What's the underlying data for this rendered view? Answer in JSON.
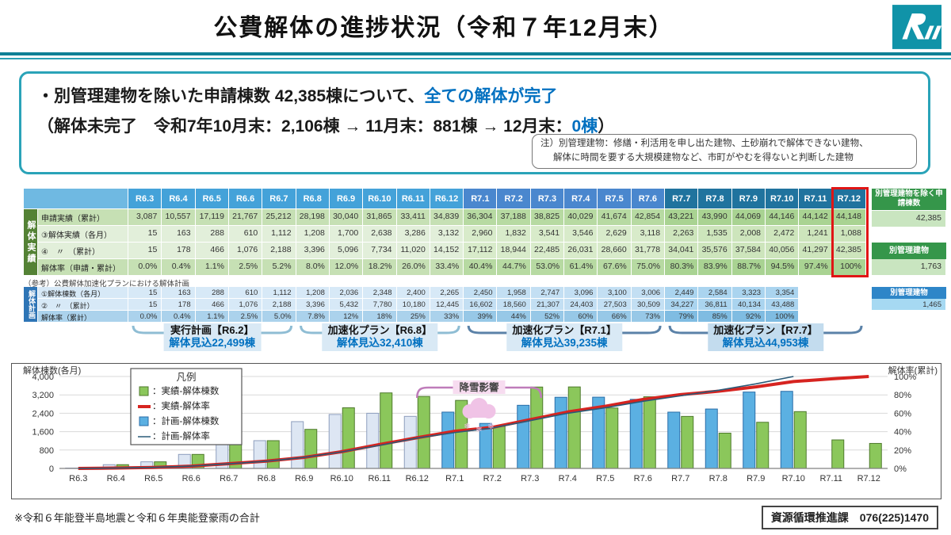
{
  "header": {
    "title": "公費解体の進捗状況（令和７年12月末）",
    "logo_name": "ishikawa-prefecture-logo"
  },
  "summary": {
    "line1_pre": "・別管理建物を除いた申請棟数 42,385棟について、",
    "line1_highlight": "全ての解体が完了",
    "line2_pre": "（解体未完了　令和7年10月末：2,106棟 → 11月末：881棟 → 12月末：",
    "line2_highlight": "0棟",
    "line2_close": "）",
    "note1": "注）別管理建物：修繕・利活用を申し出た建物、土砂崩れで解体できない建物、",
    "note2": "解体に時間を要する大規模建物など、市町がやむを得ないと判断した建物"
  },
  "table": {
    "columns": [
      "R6.3",
      "R6.4",
      "R6.5",
      "R6.6",
      "R6.7",
      "R6.8",
      "R6.9",
      "R6.10",
      "R6.11",
      "R6.12",
      "R7.1",
      "R7.2",
      "R7.3",
      "R7.4",
      "R7.5",
      "R7.6",
      "R7.7",
      "R7.8",
      "R7.9",
      "R7.10",
      "R7.11",
      "R7.12"
    ],
    "highlight_column": "R7.12",
    "actual_section": {
      "label": "解体実績",
      "rows": [
        {
          "label": "申請実績（累計）",
          "tone": "dark",
          "values": [
            "3,087",
            "10,557",
            "17,119",
            "21,767",
            "25,212",
            "28,198",
            "30,040",
            "31,865",
            "33,411",
            "34,839",
            "36,304",
            "37,188",
            "38,825",
            "40,029",
            "41,674",
            "42,854",
            "43,221",
            "43,990",
            "44,069",
            "44,146",
            "44,142",
            "44,148"
          ]
        },
        {
          "label": "③解体実績（各月）",
          "tone": "light",
          "values": [
            "15",
            "163",
            "288",
            "610",
            "1,112",
            "1,208",
            "1,700",
            "2,638",
            "3,286",
            "3,132",
            "2,960",
            "1,832",
            "3,541",
            "3,546",
            "2,629",
            "3,118",
            "2,263",
            "1,535",
            "2,008",
            "2,472",
            "1,241",
            "1,088"
          ]
        },
        {
          "label": "④　〃　（累計）",
          "tone": "light",
          "values": [
            "15",
            "178",
            "466",
            "1,076",
            "2,188",
            "3,396",
            "5,096",
            "7,734",
            "11,020",
            "14,152",
            "17,112",
            "18,944",
            "22,485",
            "26,031",
            "28,660",
            "31,778",
            "34,041",
            "35,576",
            "37,584",
            "40,056",
            "41,297",
            "42,385"
          ]
        },
        {
          "label": "解体率（申請・累計）",
          "tone": "dark",
          "values": [
            "0.0%",
            "0.4%",
            "1.1%",
            "2.5%",
            "5.2%",
            "8.0%",
            "12.0%",
            "18.2%",
            "26.0%",
            "33.4%",
            "40.4%",
            "44.7%",
            "53.0%",
            "61.4%",
            "67.6%",
            "75.0%",
            "80.3%",
            "83.9%",
            "88.7%",
            "94.5%",
            "97.4%",
            "100%"
          ]
        }
      ],
      "side": {
        "header1": "別管理建物を除く申請棟数",
        "value1": "42,385",
        "header2": "別管理建物",
        "value2": "1,763"
      }
    },
    "plan_note": "（参考）公費解体加速化プランにおける解体計画",
    "plan_section": {
      "label": "解体計画",
      "rows": [
        {
          "label": "①解体棟数（各月）",
          "tone": "light",
          "values": [
            "15",
            "163",
            "288",
            "610",
            "1,112",
            "1,208",
            "2,036",
            "2,348",
            "2,400",
            "2,265",
            "2,450",
            "1,958",
            "2,747",
            "3,096",
            "3,100",
            "3,006",
            "2,449",
            "2,584",
            "3,323",
            "3,354",
            "",
            ""
          ]
        },
        {
          "label": "②　〃　（累計）",
          "tone": "light",
          "values": [
            "15",
            "178",
            "466",
            "1,076",
            "2,188",
            "3,396",
            "5,432",
            "7,780",
            "10,180",
            "12,445",
            "16,602",
            "18,560",
            "21,307",
            "24,403",
            "27,503",
            "30,509",
            "34,227",
            "36,811",
            "40,134",
            "43,488",
            "",
            ""
          ]
        },
        {
          "label": "解体率（累計）",
          "tone": "dark",
          "values": [
            "0.0%",
            "0.4%",
            "1.1%",
            "2.5%",
            "5.0%",
            "7.8%",
            "12%",
            "18%",
            "25%",
            "33%",
            "39%",
            "44%",
            "52%",
            "60%",
            "66%",
            "73%",
            "79%",
            "85%",
            "92%",
            "100%",
            "",
            ""
          ]
        }
      ],
      "side": {
        "header": "別管理建物",
        "value": "1,465"
      }
    }
  },
  "plans": [
    {
      "line1": "実行計画【R6.2】",
      "line2": "解体見込22,499棟",
      "cols": [
        0,
        4
      ]
    },
    {
      "line1": "加速化プラン【R6.8】",
      "line2": "解体見込32,410棟",
      "cols": [
        5,
        9
      ]
    },
    {
      "line1": "加速化プラン【R7.1】",
      "line2": "解体見込39,235棟",
      "cols": [
        10,
        15
      ]
    },
    {
      "line1": "加速化プラン【R7.7】",
      "line2": "解体見込44,953棟",
      "cols": [
        16,
        21
      ]
    }
  ],
  "chart_data": {
    "type": "bar",
    "categories": [
      "R6.3",
      "R6.4",
      "R6.5",
      "R6.6",
      "R6.7",
      "R6.8",
      "R6.9",
      "R6.10",
      "R6.11",
      "R6.12",
      "R7.1",
      "R7.2",
      "R7.3",
      "R7.4",
      "R7.5",
      "R7.6",
      "R7.7",
      "R7.8",
      "R7.9",
      "R7.10",
      "R7.11",
      "R7.12"
    ],
    "series": [
      {
        "name": "計画-解体棟数",
        "type": "bar",
        "values": [
          15,
          163,
          288,
          610,
          1112,
          1208,
          2036,
          2348,
          2400,
          2265,
          2450,
          1958,
          2747,
          3096,
          3100,
          3006,
          2449,
          2584,
          3323,
          3354,
          null,
          null
        ]
      },
      {
        "name": "実績-解体棟数",
        "type": "bar",
        "values": [
          15,
          163,
          288,
          610,
          1112,
          1208,
          1700,
          2638,
          3286,
          3132,
          2960,
          1832,
          3541,
          3546,
          2629,
          3118,
          2263,
          1535,
          2008,
          2472,
          1241,
          1088
        ]
      },
      {
        "name": "実績-解体率",
        "type": "line",
        "values": [
          0,
          0.4,
          1.1,
          2.5,
          5.2,
          8,
          12,
          18.2,
          26,
          33.4,
          40.4,
          44.7,
          53,
          61.4,
          67.6,
          75,
          80.3,
          83.9,
          88.7,
          94.5,
          97.4,
          100
        ]
      },
      {
        "name": "計画-解体率",
        "type": "line",
        "values": [
          0,
          0.4,
          1.1,
          2.5,
          5,
          7.8,
          12,
          18,
          25,
          33,
          39,
          44,
          52,
          60,
          66,
          73,
          79,
          85,
          92,
          100,
          null,
          null
        ]
      }
    ],
    "ylabel_left": "解体棟数(各月)",
    "ylabel_right": "解体率(累計)",
    "yticks_left": [
      "0",
      "800",
      "1,600",
      "2,400",
      "3,200",
      "4,000"
    ],
    "yticks_right": [
      "0%",
      "20%",
      "40%",
      "60%",
      "80%",
      "100%"
    ],
    "ylim_left": [
      0,
      4000
    ],
    "ylim_right": [
      0,
      100
    ],
    "grid": true,
    "legend_position": "upper-left",
    "legend_title": "凡例",
    "legend": [
      {
        "label": "：実績-解体棟数",
        "marker": "square",
        "color": "#8bc75b",
        "border": "#4f7a2d"
      },
      {
        "label": "：実績-解体率",
        "marker": "line",
        "color": "#d62420",
        "width": 4
      },
      {
        "label": "：計画-解体棟数",
        "marker": "square",
        "color": "#5bb0e2",
        "border": "#2a6da8"
      },
      {
        "label": "：計画-解体率",
        "marker": "line",
        "color": "#2a5a78",
        "width": 1.5
      }
    ],
    "annotation": {
      "text": "降雪影響",
      "from": "R6.12",
      "to": "R7.3",
      "color": "#bf7cba"
    }
  },
  "footer": {
    "note": "※令和６年能登半島地震と令和６年奥能登豪雨の合計",
    "contact": "資源循環推進課　076(225)1470"
  },
  "colors": {
    "teal_rule": "#0e7f95",
    "accent_blue": "#0070c0",
    "red_highlight": "#e01515",
    "header_blue_r6": "#44a2d9",
    "header_blue_r71": "#4a87ce",
    "header_blue_r77": "#20739e",
    "actual_dark": [
      "#c6e0b4",
      "#b7daa2",
      "#a9d392"
    ],
    "actual_light": [
      "#e2efda",
      "#d8ebca",
      "#cde5bc"
    ],
    "plan_light": [
      "#d7e9f7",
      "#c3dff3",
      "#aad4ef"
    ],
    "plan_dark": [
      "#abd2ec",
      "#97c8e7",
      "#7fbce2"
    ],
    "actual_vlabel": "#548235",
    "plan_vlabel": "#2e75b6",
    "side_green": "#35964a",
    "side_green_value": "#c9e5c0",
    "side_blue": "#2e86c8",
    "side_blue_value": "#a6d9f2",
    "plan_bar_pale": "#dde6f3",
    "plan_bar_pale_border": "#8d9dbd",
    "plan_bar_sky": "#5bb0e2",
    "plan_bar_sky_border": "#2a6da8",
    "actual_bar": "#8bc75b",
    "actual_bar_border": "#4f7a2d",
    "brace_light": "#8fbdd4",
    "brace_dark": "#5b82a8"
  }
}
